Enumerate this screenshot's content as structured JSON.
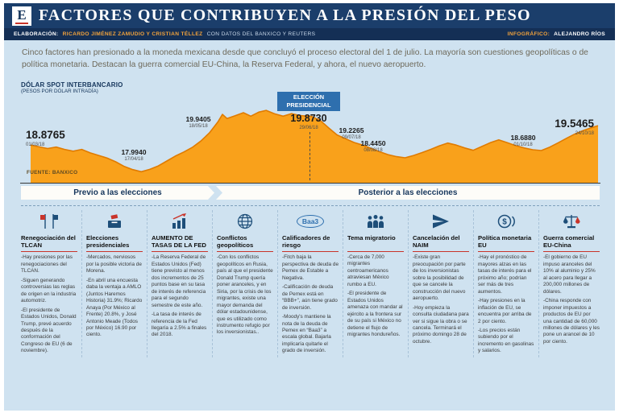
{
  "header": {
    "logo_letter": "E",
    "title": "FACTORES QUE CONTRIBUYEN A LA PRESIÓN DEL PESO",
    "elaboracion_label": "ELABORACIÓN:",
    "elaboracion_names": "RICARDO JIMÉNEZ ZAMUDIO Y CRISTIAN TÉLLEZ",
    "elaboracion_source": "CON DATOS DEL BANXICO Y REUTERS",
    "infografico_label": "INFOGRÁFICO:",
    "infografico_name": "ALEJANDRO RÍOS"
  },
  "intro": "Cinco factores han presionado a la moneda mexicana desde que concluyó el proceso electoral del 1 de julio. La mayoría son cuestiones geopolíticas o de política monetaria. Destacan la guerra comercial EU-China, la Reserva Federal, y ahora, el nuevo aeropuerto.",
  "chart_labels": {
    "title": "DÓLAR SPOT INTERBANCARIO",
    "subtitle": "(PESOS POR DÓLAR INTRADÍA)",
    "source": "FUENTE: BANXICO",
    "election_badge_line1": "ELECCIÓN",
    "election_badge_line2": "PRESIDENCIAL"
  },
  "chart_data": {
    "type": "area",
    "title": "DÓLAR SPOT INTERBANCARIO (PESOS POR DÓLAR INTRADÍA)",
    "unit": "pesos por dólar",
    "ylim": [
      17.8,
      20.25
    ],
    "x_range": [
      "01/03/18",
      "24/10/18"
    ],
    "grid": false,
    "legend": "none",
    "annotations": [
      {
        "value": "18.8765",
        "date": "01/03/18"
      },
      {
        "value": "17.9940",
        "date": "17/04/18"
      },
      {
        "value": "19.9405",
        "date": "18/05/18"
      },
      {
        "value": "19.8730",
        "date": "29/06/18",
        "label": "ELECCIÓN PRESIDENCIAL"
      },
      {
        "value": "19.2265",
        "date": "09/07/18"
      },
      {
        "value": "18.4450",
        "date": "08/08/18"
      },
      {
        "value": "18.6880",
        "date": "01/10/18"
      },
      {
        "value": "19.5465",
        "date": "24/10/18"
      }
    ],
    "series": [
      {
        "name": "Dólar spot interbancario",
        "points": [
          [
            0,
            18.88
          ],
          [
            1.5,
            18.82
          ],
          [
            3,
            18.76
          ],
          [
            4.5,
            18.81
          ],
          [
            6,
            18.73
          ],
          [
            7.5,
            18.67
          ],
          [
            9,
            18.73
          ],
          [
            10.5,
            18.61
          ],
          [
            12,
            18.52
          ],
          [
            13.5,
            18.43
          ],
          [
            15,
            18.3
          ],
          [
            16.5,
            18.14
          ],
          [
            18,
            18.03
          ],
          [
            19.5,
            17.96
          ],
          [
            21,
            18.04
          ],
          [
            22.5,
            18.16
          ],
          [
            24,
            18.33
          ],
          [
            25.5,
            18.5
          ],
          [
            27,
            18.64
          ],
          [
            28.5,
            18.8
          ],
          [
            30,
            19.02
          ],
          [
            31.5,
            19.3
          ],
          [
            33,
            19.68
          ],
          [
            33.8,
            19.94
          ],
          [
            34.6,
            19.8
          ],
          [
            36,
            19.89
          ],
          [
            37.5,
            20.0
          ],
          [
            38.8,
            19.88
          ],
          [
            40.2,
            20.02
          ],
          [
            41.5,
            20.08
          ],
          [
            43,
            19.96
          ],
          [
            44.5,
            19.88
          ],
          [
            46,
            19.97
          ],
          [
            47.5,
            19.9
          ],
          [
            49.5,
            19.87
          ],
          [
            51,
            19.74
          ],
          [
            52.5,
            19.48
          ],
          [
            54,
            19.23
          ],
          [
            55.5,
            19.1
          ],
          [
            57,
            18.97
          ],
          [
            58.5,
            18.88
          ],
          [
            60,
            18.77
          ],
          [
            61.5,
            18.65
          ],
          [
            63,
            18.55
          ],
          [
            64.5,
            18.48
          ],
          [
            66,
            18.44
          ],
          [
            67.5,
            18.52
          ],
          [
            69,
            18.62
          ],
          [
            70.5,
            18.73
          ],
          [
            72,
            18.85
          ],
          [
            73.5,
            18.95
          ],
          [
            75,
            18.88
          ],
          [
            76.5,
            18.78
          ],
          [
            78,
            18.7
          ],
          [
            79.5,
            18.83
          ],
          [
            81,
            18.96
          ],
          [
            82.5,
            19.06
          ],
          [
            84,
            18.96
          ],
          [
            85.5,
            18.86
          ],
          [
            87,
            18.78
          ],
          [
            88.5,
            18.72
          ],
          [
            90,
            18.69
          ],
          [
            91.5,
            18.81
          ],
          [
            93,
            18.96
          ],
          [
            94.5,
            19.12
          ],
          [
            96,
            19.27
          ],
          [
            97.5,
            19.39
          ],
          [
            99,
            19.49
          ],
          [
            100,
            19.55
          ]
        ]
      }
    ],
    "source": "FUENTE: BANXICO",
    "colors": {
      "area": "#F9A11B",
      "line": "#E07B00",
      "badge": "#2E6FAE"
    }
  },
  "timeline": {
    "before": "Previo a las elecciones",
    "after": "Posterior a las elecciones"
  },
  "icons": {
    "baa3": "Baa3",
    "dollar": "$"
  },
  "factors": [
    {
      "title": "Renegociación del TLCAN",
      "bullets": [
        "-Hay presiones por las renegociaciones del TLCAN.",
        "-Siguen generando controversias las reglas de origen en la industria automotriz.",
        "-El presidente de Estados Unidos, Donald Trump, prevé acuerdo después de la conformación del Congreso de EU (6 de noviembre)."
      ]
    },
    {
      "title": "Elecciones presidenciales",
      "bullets": [
        "-Mercados, nerviosos por la posible victoria de Morena.",
        "-En abril una encuesta daba la ventaja a AMLO (Juntos Haremos Historia) 31.9%; Ricardo Anaya (Por México al Frente) 20.8%, y José Antonio Meade (Todos por México) 16.90 por ciento."
      ]
    },
    {
      "title": "AUMENTO DE TASAS DE LA FED",
      "bullets": [
        "-La Reserva Federal de Estados Unidos (Fed) tiene previsto al menos dos incrementos de 25 puntos base en su tasa de interés de referencia para el segundo semestre de este año.",
        "-La tasa de interés de referencia de la Fed llegaría a 2.5% a finales del 2018."
      ]
    },
    {
      "title": "Conflictos geopolíticos",
      "bullets": [
        "-Con los conflictos geopolíticos en Rusia, país al que el presidente Donald Trump quería poner aranceles, y en Siria, por la crisis de los migrantes, existe una mayor demanda del dólar estadounidense, que es utilizado como instrumento refugio por los inversionistas.."
      ]
    },
    {
      "title": "Calificadores de riesgo",
      "bullets": [
        "-Fitch baja la perspectiva de deuda de Pemex de Estable a Negativa.",
        "-Calificación de deuda de Pemex está en “BBB+”, aún tiene grado de inversión.",
        "-Moody's mantiene la nota de la deuda de Pemex en “Baa3” a escala global. Bajarla implicaría quitarle el grado de inversión."
      ]
    },
    {
      "title": "Tema migratorio",
      "bullets": [
        "-Cerca de 7,000 migrantes centroamericanos atraviesan México rumbo a EU.",
        "-El presidente de Estados Unidos amenaza con mandar al ejército a la frontera sur de su país si México no detiene el flujo de migrantes hondureños."
      ]
    },
    {
      "title": "Cancelación del NAIM",
      "bullets": [
        "-Existe gran preocupación por parte de los inversionistas sobre la posibilidad de que se cancele la construcción del nuevo aeropuerto.",
        "-Hoy empieza la consulta ciudadana para ver si sigue la obra o se cancela. Terminará el próximo domingo 28 de octubre."
      ]
    },
    {
      "title": "Política monetaria EU",
      "bullets": [
        "-Hay el pronóstico de mayores alzas en las tasas de interés para el próximo año; podrían ser más de tres aumentos.",
        "-Hay presiones en la inflación de EU, se encuentra por arriba de 2 por ciento.",
        "-Los precios están subiendo por el incremento en gasolinas y salarios."
      ]
    },
    {
      "title": "Guerra comercial EU-China",
      "bullets": [
        "-El gobierno de EU impuso aranceles del 10% al aluminio y 25% al acero para llegar a 200,000 millones de dólares.",
        "-China responde con imponer impuestos a productos de EU por una cantidad de 60,000 millones de dólares y les pone un arancel de 10 por ciento."
      ]
    }
  ]
}
